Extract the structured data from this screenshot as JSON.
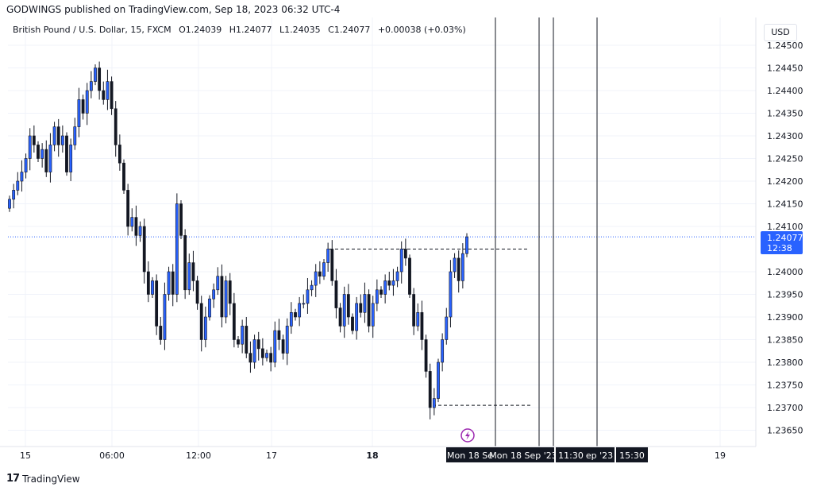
{
  "header": {
    "publisher_line": "GODWINGS published on TradingView.com, Sep 18, 2023 06:32 UTC-4"
  },
  "legend": {
    "symbol": "British Pound / U.S. Dollar, 15, FXCM",
    "open": "O1.24039",
    "high": "H1.24077",
    "low": "L1.24035",
    "close": "C1.24077",
    "change": "+0.00038 (+0.03%)"
  },
  "currency_button": "USD",
  "price_badge": {
    "price": "1.24077",
    "countdown": "12:38"
  },
  "time_tags": [
    "Mon 18 Se",
    "Mon 18 Sep '23",
    "11:30",
    "ep '23",
    "15:30"
  ],
  "footer": {
    "brand": "TradingView"
  },
  "colors": {
    "up": "#2962ff",
    "down": "#131722",
    "accent": "#2962ff",
    "grid": "#f0f3fa",
    "alert": "#9c27b0"
  },
  "icons": {
    "alert": "lightning-icon",
    "logo": "tradingview-logo-icon"
  },
  "chart_data": {
    "type": "candlestick",
    "title": "British Pound / U.S. Dollar, 15, FXCM",
    "x_ticks": [
      "15",
      "06:00",
      "12:00",
      "17",
      "18",
      "19"
    ],
    "y_ticks": [
      "1.24500",
      "1.24450",
      "1.24400",
      "1.24350",
      "1.24300",
      "1.24250",
      "1.24200",
      "1.24150",
      "1.24100",
      "1.24000",
      "1.23950",
      "1.23900",
      "1.23850",
      "1.23800",
      "1.23750",
      "1.23700",
      "1.23650"
    ],
    "ylim": [
      1.2362,
      1.2451
    ],
    "last_price": 1.24077,
    "levels": [
      {
        "price": 1.2405,
        "style": "dashed"
      },
      {
        "price": 1.23705,
        "style": "dashed"
      }
    ],
    "closes": [
      1.2416,
      1.2418,
      1.242,
      1.2422,
      1.2425,
      1.243,
      1.2428,
      1.2425,
      1.2427,
      1.2422,
      1.2428,
      1.2432,
      1.2428,
      1.243,
      1.2422,
      1.2428,
      1.2432,
      1.2438,
      1.2435,
      1.244,
      1.2442,
      1.2445,
      1.244,
      1.2438,
      1.2442,
      1.2436,
      1.2428,
      1.2424,
      1.2418,
      1.241,
      1.2412,
      1.2408,
      1.241,
      1.24,
      1.2395,
      1.2398,
      1.2388,
      1.2385,
      1.2395,
      1.24,
      1.2395,
      1.2415,
      1.2408,
      1.2396,
      1.2402,
      1.2398,
      1.2393,
      1.2385,
      1.239,
      1.2394,
      1.2396,
      1.2399,
      1.239,
      1.2398,
      1.2393,
      1.2385,
      1.2384,
      1.2388,
      1.2382,
      1.238,
      1.2385,
      1.2383,
      1.2381,
      1.2382,
      1.238,
      1.2387,
      1.2385,
      1.2382,
      1.2388,
      1.2391,
      1.239,
      1.2393,
      1.2393,
      1.2396,
      1.2397,
      1.24,
      1.2399,
      1.2402,
      1.2405,
      1.2398,
      1.2392,
      1.2388,
      1.2395,
      1.239,
      1.2387,
      1.2393,
      1.2391,
      1.2395,
      1.2388,
      1.2393,
      1.2396,
      1.2395,
      1.2398,
      1.2397,
      1.2398,
      1.24,
      1.2405,
      1.2403,
      1.2395,
      1.2388,
      1.2391,
      1.2385,
      1.2378,
      1.237,
      1.2372,
      1.238,
      1.2385,
      1.239,
      1.24,
      1.2403,
      1.2398,
      1.2404,
      1.24077
    ]
  }
}
